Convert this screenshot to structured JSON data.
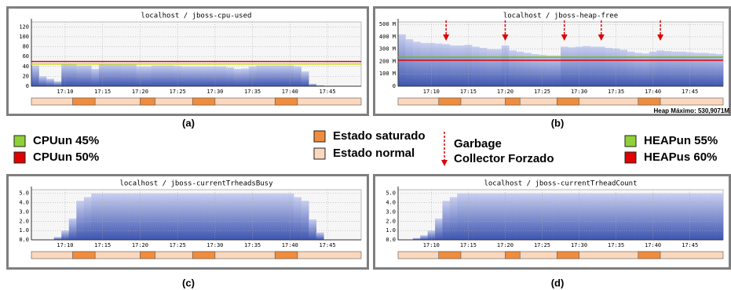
{
  "chart_data": [
    {
      "type": "area",
      "title": "localhost / jboss-cpu-used",
      "label": "(a)",
      "x": [
        6,
        7,
        8,
        9,
        10,
        11,
        12,
        13,
        14,
        15,
        16,
        17,
        18,
        19,
        20,
        21,
        22,
        23,
        24,
        25,
        26,
        27,
        28,
        29,
        30,
        31,
        32,
        33,
        34,
        35,
        36,
        37,
        38,
        39,
        40,
        41,
        42,
        43,
        44,
        45,
        46,
        47,
        48,
        49
      ],
      "values": [
        42,
        20,
        15,
        10,
        45,
        45,
        42,
        42,
        35,
        45,
        45,
        45,
        44,
        44,
        40,
        40,
        42,
        42,
        42,
        41,
        40,
        40,
        40,
        40,
        40,
        40,
        38,
        35,
        36,
        40,
        42,
        42,
        42,
        42,
        42,
        40,
        30,
        5,
        2,
        0,
        0,
        0,
        0,
        0
      ],
      "xlim": [
        5.5,
        49.5
      ],
      "ylim": [
        0,
        130
      ],
      "yticks": [
        0,
        20,
        40,
        60,
        80,
        100,
        120
      ],
      "xticks": [
        {
          "value": 10,
          "label": "17:10"
        },
        {
          "value": 15,
          "label": "17:15"
        },
        {
          "value": 20,
          "label": "17:20"
        },
        {
          "value": 25,
          "label": "17:25"
        },
        {
          "value": 30,
          "label": "17:30"
        },
        {
          "value": 35,
          "label": "17:35"
        },
        {
          "value": 40,
          "label": "17:40"
        },
        {
          "value": 45,
          "label": "17:45"
        }
      ],
      "thresholds": [
        {
          "value": 45,
          "color": "#c8d800"
        },
        {
          "value": 50,
          "color": "#e00000"
        }
      ],
      "saturated": [
        [
          11,
          14
        ],
        [
          20,
          22
        ],
        [
          27,
          30
        ],
        [
          38,
          41
        ]
      ],
      "grid": true
    },
    {
      "type": "area",
      "title": "localhost / jboss-heap-free",
      "label": "(b)",
      "note": "Heap Máximo: 530,9071M",
      "x": [
        6,
        7,
        8,
        9,
        10,
        11,
        12,
        13,
        14,
        15,
        16,
        17,
        18,
        19,
        20,
        21,
        22,
        23,
        24,
        25,
        26,
        27,
        28,
        29,
        30,
        31,
        32,
        33,
        34,
        35,
        36,
        37,
        38,
        39,
        40,
        41,
        42,
        43,
        44,
        45,
        46,
        47,
        48,
        49
      ],
      "values": [
        420,
        380,
        360,
        350,
        350,
        345,
        340,
        330,
        330,
        335,
        320,
        310,
        300,
        300,
        330,
        290,
        280,
        270,
        260,
        255,
        250,
        250,
        320,
        315,
        320,
        325,
        320,
        320,
        310,
        305,
        295,
        280,
        270,
        265,
        280,
        290,
        285,
        280,
        280,
        275,
        270,
        270,
        265,
        260
      ],
      "xlim": [
        5.5,
        49.5
      ],
      "ylim": [
        0,
        520
      ],
      "yticks": [
        0,
        {
          "value": 100,
          "label": "100 M"
        },
        {
          "value": 200,
          "label": "200 M"
        },
        {
          "value": 300,
          "label": "300 M"
        },
        {
          "value": 400,
          "label": "400 M"
        },
        {
          "value": 500,
          "label": "500 M"
        }
      ],
      "xticks": [
        {
          "value": 10,
          "label": "17:10"
        },
        {
          "value": 15,
          "label": "17:15"
        },
        {
          "value": 20,
          "label": "17:20"
        },
        {
          "value": 25,
          "label": "17:25"
        },
        {
          "value": 30,
          "label": "17:30"
        },
        {
          "value": 35,
          "label": "17:35"
        },
        {
          "value": 40,
          "label": "17:40"
        },
        {
          "value": 45,
          "label": "17:45"
        }
      ],
      "thresholds": [
        {
          "value": 235,
          "color": "#7ab800"
        },
        {
          "value": 210,
          "color": "#e00000"
        }
      ],
      "gc_events": [
        12,
        20,
        28,
        33,
        41
      ],
      "saturated": [
        [
          11,
          14
        ],
        [
          20,
          22
        ],
        [
          27,
          30
        ],
        [
          38,
          41
        ]
      ],
      "grid": true
    },
    {
      "type": "area",
      "title": "localhost / jboss-currentTrheadsBusy",
      "label": "(c)",
      "x": [
        6,
        7,
        8,
        9,
        10,
        11,
        12,
        13,
        14,
        15,
        16,
        17,
        18,
        19,
        20,
        21,
        22,
        23,
        24,
        25,
        26,
        27,
        28,
        29,
        30,
        31,
        32,
        33,
        34,
        35,
        36,
        37,
        38,
        39,
        40,
        41,
        42,
        43,
        44,
        45,
        46,
        47,
        48,
        49
      ],
      "values": [
        0,
        0,
        0,
        0.3,
        1,
        2.3,
        4.2,
        4.6,
        5,
        5,
        5,
        5,
        5,
        5,
        5,
        5,
        5,
        5,
        5,
        5,
        5,
        5,
        5,
        5,
        5,
        5,
        5,
        5,
        5,
        5,
        5,
        5,
        5,
        5,
        5,
        4.6,
        4.2,
        2.2,
        0.8,
        0,
        0,
        0,
        0,
        0
      ],
      "xlim": [
        5.5,
        49.5
      ],
      "ylim": [
        0,
        5.4
      ],
      "yticks": [
        {
          "value": 0,
          "label": "0.0"
        },
        {
          "value": 1,
          "label": "1.0"
        },
        {
          "value": 2,
          "label": "2.0"
        },
        {
          "value": 3,
          "label": "3.0"
        },
        {
          "value": 4,
          "label": "4.0"
        },
        {
          "value": 5,
          "label": "5.0"
        }
      ],
      "xticks": [
        {
          "value": 10,
          "label": "17:10"
        },
        {
          "value": 15,
          "label": "17:15"
        },
        {
          "value": 20,
          "label": "17:20"
        },
        {
          "value": 25,
          "label": "17:25"
        },
        {
          "value": 30,
          "label": "17:30"
        },
        {
          "value": 35,
          "label": "17:35"
        },
        {
          "value": 40,
          "label": "17:40"
        },
        {
          "value": 45,
          "label": "17:45"
        }
      ],
      "saturated": [
        [
          11,
          14
        ],
        [
          20,
          22
        ],
        [
          27,
          30
        ],
        [
          38,
          41
        ]
      ],
      "grid": true
    },
    {
      "type": "area",
      "title": "localhost / jboss-currentTrheadCount",
      "label": "(d)",
      "x": [
        6,
        7,
        8,
        9,
        10,
        11,
        12,
        13,
        14,
        15,
        16,
        17,
        18,
        19,
        20,
        21,
        22,
        23,
        24,
        25,
        26,
        27,
        28,
        29,
        30,
        31,
        32,
        33,
        34,
        35,
        36,
        37,
        38,
        39,
        40,
        41,
        42,
        43,
        44,
        45,
        46,
        47,
        48,
        49
      ],
      "values": [
        0,
        0,
        0.2,
        0.5,
        1,
        2.3,
        4.2,
        4.6,
        5,
        5,
        5,
        5,
        5,
        5,
        5,
        5,
        5,
        5,
        5,
        5,
        5,
        5,
        5,
        5,
        5,
        5,
        5,
        5,
        5,
        5,
        5,
        5,
        5,
        5,
        5,
        5,
        5,
        5,
        5,
        5,
        5,
        5,
        5,
        5
      ],
      "xlim": [
        5.5,
        49.5
      ],
      "ylim": [
        0,
        5.4
      ],
      "yticks": [
        {
          "value": 0,
          "label": "0.0"
        },
        {
          "value": 1,
          "label": "1.0"
        },
        {
          "value": 2,
          "label": "2.0"
        },
        {
          "value": 3,
          "label": "3.0"
        },
        {
          "value": 4,
          "label": "4.0"
        },
        {
          "value": 5,
          "label": "5.0"
        }
      ],
      "xticks": [
        {
          "value": 10,
          "label": "17:10"
        },
        {
          "value": 15,
          "label": "17:15"
        },
        {
          "value": 20,
          "label": "17:20"
        },
        {
          "value": 25,
          "label": "17:25"
        },
        {
          "value": 30,
          "label": "17:30"
        },
        {
          "value": 35,
          "label": "17:35"
        },
        {
          "value": 40,
          "label": "17:40"
        },
        {
          "value": 45,
          "label": "17:45"
        }
      ],
      "saturated": [
        [
          11,
          14
        ],
        [
          20,
          22
        ],
        [
          27,
          30
        ],
        [
          38,
          41
        ]
      ],
      "grid": true
    }
  ],
  "legend": [
    {
      "label": "CPUun 45%",
      "color": "#8ed136"
    },
    {
      "label": "CPUun 50%",
      "color": "#e00000"
    },
    {
      "label": "Estado saturado",
      "color": "#f08c3c"
    },
    {
      "label": "Estado normal",
      "color": "#fbd7bd"
    },
    {
      "label": "HEAPun 55%",
      "color": "#8ed136"
    },
    {
      "label": "HEAPus 60%",
      "color": "#e00000"
    }
  ],
  "gc_legend": [
    "Garbage",
    "Collector Forzado"
  ]
}
